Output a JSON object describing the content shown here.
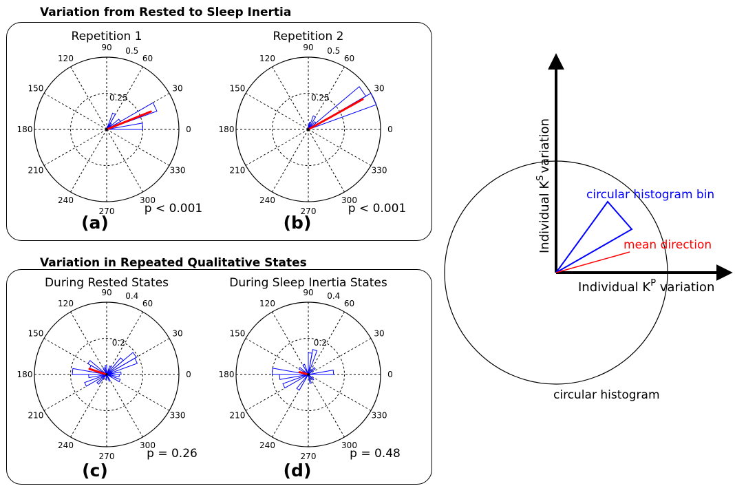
{
  "sections": [
    {
      "title": "Variation from Rested to Sleep Inertia"
    },
    {
      "title": "Variation in Repeated Qualitative States"
    }
  ],
  "colors": {
    "histogram": "#0000ff",
    "mean": "#ff0000",
    "axes": "#000000"
  },
  "chart_data": [
    {
      "type": "polar-histogram",
      "title": "Repetition 1",
      "panel_label": "(a)",
      "p_value_text": "p < 0.001",
      "angle_ticks": [
        "0",
        "30",
        "60",
        "90",
        "120",
        "150",
        "180",
        "210",
        "240",
        "270",
        "300",
        "330"
      ],
      "radial_max": 0.5,
      "radial_ticks": [
        {
          "value": 0.25,
          "label": "0.25"
        },
        {
          "value": 0.5,
          "label": "0.5"
        }
      ],
      "bins": [
        {
          "start": 0,
          "end": 10,
          "value": 0.25
        },
        {
          "start": 20,
          "end": 30,
          "value": 0.37
        },
        {
          "start": 30,
          "end": 40,
          "value": 0.11
        },
        {
          "start": 40,
          "end": 50,
          "value": 0.04
        },
        {
          "start": 50,
          "end": 60,
          "value": 0.05
        },
        {
          "start": 60,
          "end": 70,
          "value": 0.12
        },
        {
          "start": 70,
          "end": 80,
          "value": 0.02
        }
      ],
      "mean_direction": {
        "angle": 22,
        "length": 0.33
      }
    },
    {
      "type": "polar-histogram",
      "title": "Repetition 2",
      "panel_label": "(b)",
      "p_value_text": "p < 0.001",
      "angle_ticks": [
        "0",
        "30",
        "60",
        "90",
        "120",
        "150",
        "180",
        "210",
        "240",
        "270",
        "300",
        "330"
      ],
      "radial_max": 0.5,
      "radial_ticks": [
        {
          "value": 0.25,
          "label": "0.25"
        },
        {
          "value": 0.5,
          "label": "0.5"
        }
      ],
      "bins": [
        {
          "start": 20,
          "end": 30,
          "value": 0.5
        },
        {
          "start": 30,
          "end": 40,
          "value": 0.46
        },
        {
          "start": 40,
          "end": 50,
          "value": 0.07
        },
        {
          "start": 60,
          "end": 70,
          "value": 0.1
        },
        {
          "start": 70,
          "end": 80,
          "value": 0.05
        },
        {
          "start": 80,
          "end": 90,
          "value": 0.03
        }
      ],
      "mean_direction": {
        "angle": 29,
        "length": 0.43
      }
    },
    {
      "type": "polar-histogram",
      "title": "During Rested States",
      "panel_label": "(c)",
      "p_value_text": "p = 0.26",
      "angle_ticks": [
        "0",
        "30",
        "60",
        "90",
        "120",
        "150",
        "180",
        "210",
        "240",
        "270",
        "300",
        "330"
      ],
      "radial_max": 0.4,
      "radial_ticks": [
        {
          "value": 0.2,
          "label": "0.2"
        },
        {
          "value": 0.4,
          "label": "0.4"
        }
      ],
      "bins": [
        {
          "start": 0,
          "end": 10,
          "value": 0.08
        },
        {
          "start": 10,
          "end": 20,
          "value": 0.03
        },
        {
          "start": 20,
          "end": 30,
          "value": 0.18
        },
        {
          "start": 30,
          "end": 40,
          "value": 0.19
        },
        {
          "start": 40,
          "end": 50,
          "value": 0.12
        },
        {
          "start": 60,
          "end": 70,
          "value": 0.05
        },
        {
          "start": 90,
          "end": 100,
          "value": 0.05
        },
        {
          "start": 110,
          "end": 120,
          "value": 0.04
        },
        {
          "start": 140,
          "end": 150,
          "value": 0.12
        },
        {
          "start": 150,
          "end": 160,
          "value": 0.1
        },
        {
          "start": 170,
          "end": 180,
          "value": 0.19
        },
        {
          "start": 180,
          "end": 190,
          "value": 0.1
        },
        {
          "start": 200,
          "end": 210,
          "value": 0.13
        },
        {
          "start": 220,
          "end": 230,
          "value": 0.07
        },
        {
          "start": 260,
          "end": 270,
          "value": 0.03
        },
        {
          "start": 290,
          "end": 300,
          "value": 0.04
        },
        {
          "start": 330,
          "end": 340,
          "value": 0.08
        },
        {
          "start": 350,
          "end": 360,
          "value": 0.07
        }
      ],
      "mean_direction": {
        "angle": 162,
        "length": 0.1
      }
    },
    {
      "type": "polar-histogram",
      "title": "During Sleep Inertia States",
      "panel_label": "(d)",
      "p_value_text": "p = 0.48",
      "angle_ticks": [
        "0",
        "30",
        "60",
        "90",
        "120",
        "150",
        "180",
        "210",
        "240",
        "270",
        "300",
        "330"
      ],
      "radial_max": 0.4,
      "radial_ticks": [
        {
          "value": 0.2,
          "label": "0.2"
        },
        {
          "value": 0.4,
          "label": "0.4"
        }
      ],
      "bins": [
        {
          "start": 0,
          "end": 10,
          "value": 0.14
        },
        {
          "start": 40,
          "end": 50,
          "value": 0.05
        },
        {
          "start": 70,
          "end": 80,
          "value": 0.14
        },
        {
          "start": 80,
          "end": 90,
          "value": 0.12
        },
        {
          "start": 110,
          "end": 120,
          "value": 0.06
        },
        {
          "start": 140,
          "end": 150,
          "value": 0.06
        },
        {
          "start": 170,
          "end": 180,
          "value": 0.2
        },
        {
          "start": 180,
          "end": 190,
          "value": 0.16
        },
        {
          "start": 200,
          "end": 210,
          "value": 0.15
        },
        {
          "start": 230,
          "end": 240,
          "value": 0.1
        },
        {
          "start": 280,
          "end": 290,
          "value": 0.05
        },
        {
          "start": 310,
          "end": 320,
          "value": 0.04
        }
      ],
      "mean_direction": {
        "angle": 165,
        "length": 0.05
      }
    }
  ],
  "schematic": {
    "x_axis_label": "Individual K",
    "x_axis_superscript": "P",
    "x_axis_suffix": " variation",
    "y_axis_label": "Individual K",
    "y_axis_superscript": "S",
    "y_axis_suffix": "variation",
    "bin_label": "circular histogram bin",
    "mean_label": "mean direction",
    "circle_label": "circular histogram"
  }
}
